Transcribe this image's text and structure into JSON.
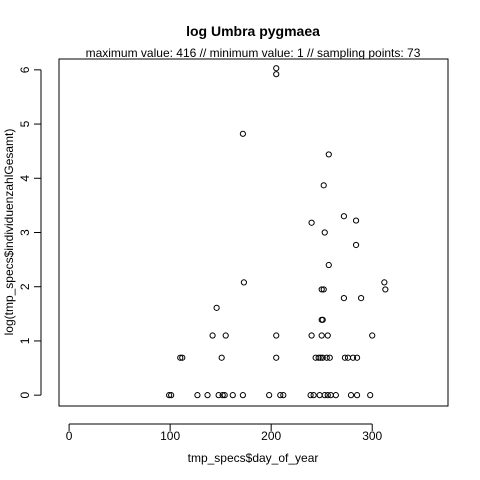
{
  "chart_data": {
    "type": "scatter",
    "title": "log Umbra pygmaea",
    "subtitle": "maximum value: 416  //  minimum value: 1  // sampling points: 73",
    "xlabel": "tmp_specs$day_of_year",
    "ylabel": "log(tmp_specs$individuenzahlGesamt)",
    "xlim": [
      -10,
      375
    ],
    "ylim": [
      -0.2,
      6.2
    ],
    "xticks": [
      0,
      100,
      200,
      300
    ],
    "yticks": [
      0,
      1,
      2,
      3,
      4,
      5,
      6
    ],
    "grid": false,
    "marker": "open-circle",
    "points": [
      [
        99,
        0
      ],
      [
        101,
        0
      ],
      [
        110,
        0.69
      ],
      [
        112,
        0.69
      ],
      [
        127,
        0
      ],
      [
        137,
        0
      ],
      [
        142,
        1.1
      ],
      [
        146,
        1.61
      ],
      [
        148,
        0
      ],
      [
        151,
        0.69
      ],
      [
        152,
        0
      ],
      [
        154,
        0
      ],
      [
        155,
        1.1
      ],
      [
        162,
        0
      ],
      [
        172,
        4.82
      ],
      [
        173,
        2.08
      ],
      [
        172,
        0
      ],
      [
        198,
        0
      ],
      [
        205,
        6.03
      ],
      [
        205,
        5.92
      ],
      [
        205,
        1.1
      ],
      [
        205,
        0.69
      ],
      [
        209,
        0
      ],
      [
        212,
        0
      ],
      [
        240,
        3.18
      ],
      [
        240,
        1.1
      ],
      [
        239,
        0
      ],
      [
        242,
        0
      ],
      [
        244,
        0.69
      ],
      [
        247,
        0.69
      ],
      [
        250,
        1.95
      ],
      [
        252,
        1.95
      ],
      [
        250,
        1.39
      ],
      [
        251,
        1.39
      ],
      [
        250,
        1.1
      ],
      [
        249,
        0.69
      ],
      [
        251,
        0.69
      ],
      [
        248,
        0
      ],
      [
        252,
        3.87
      ],
      [
        253,
        3.0
      ],
      [
        257,
        4.44
      ],
      [
        257,
        2.4
      ],
      [
        256,
        1.1
      ],
      [
        255,
        0.69
      ],
      [
        258,
        0.69
      ],
      [
        253,
        0
      ],
      [
        256,
        0
      ],
      [
        259,
        0
      ],
      [
        264,
        0
      ],
      [
        272,
        3.3
      ],
      [
        272,
        1.79
      ],
      [
        273,
        0.69
      ],
      [
        276,
        0.69
      ],
      [
        279,
        0
      ],
      [
        284,
        3.22
      ],
      [
        284,
        2.77
      ],
      [
        281,
        0.69
      ],
      [
        285,
        0.69
      ],
      [
        285,
        0
      ],
      [
        289,
        1.79
      ],
      [
        298,
        0
      ],
      [
        300,
        1.1
      ],
      [
        312,
        2.08
      ],
      [
        313,
        1.95
      ]
    ]
  }
}
